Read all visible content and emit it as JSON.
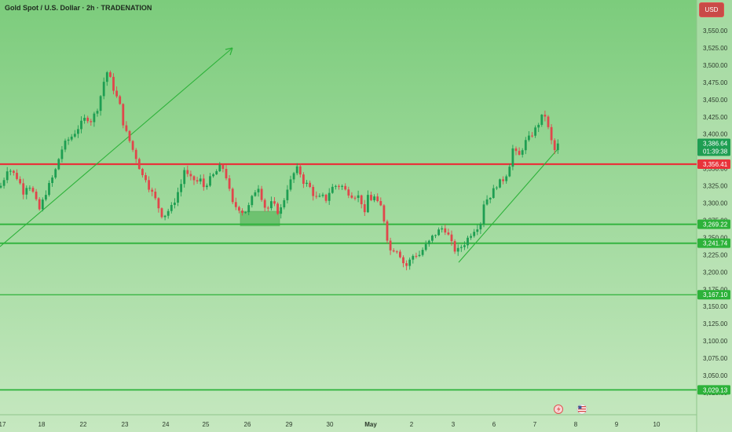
{
  "header": {
    "title": "Gold Spot / U.S. Dollar · 2h · TRADENATION",
    "currency": "USD"
  },
  "chart_data": {
    "type": "candlestick",
    "x_tick_labels": [
      "17",
      "18",
      "22",
      "23",
      "24",
      "25",
      "26",
      "29",
      "30",
      "May",
      "2",
      "3",
      "6",
      "7",
      "8",
      "9",
      "10"
    ],
    "y_tick_labels": [
      3550,
      3525,
      3500,
      3475,
      3450,
      3425,
      3400,
      3375,
      3350,
      3325,
      3300,
      3275,
      3250,
      3225,
      3200,
      3175,
      3150,
      3125,
      3100,
      3075,
      3050,
      3025
    ],
    "y_tick_text": [
      "3,550.00",
      "3,525.00",
      "3,500.00",
      "3,475.00",
      "3,450.00",
      "3,425.00",
      "3,400.00",
      "3,375.00",
      "3,350.00",
      "3,325.00",
      "3,300.00",
      "3,275.00",
      "3,250.00",
      "3,225.00",
      "3,200.00",
      "3,175.00",
      "3,150.00",
      "3,125.00",
      "3,100.00",
      "3,075.00",
      "3,050.00",
      "3,025.00"
    ],
    "ylim": [
      3015,
      3570
    ],
    "current_price": {
      "value": 3386.64,
      "label": "3,386.64",
      "countdown": "01:39:38"
    },
    "levels": [
      {
        "value": 3356.41,
        "label": "3,356.41",
        "color": "#e8333a"
      },
      {
        "value": 3269.22,
        "label": "3,269.22",
        "color": "#2db23a"
      },
      {
        "value": 3241.74,
        "label": "3,241.74",
        "color": "#2db23a"
      },
      {
        "value": 3167.1,
        "label": "3,167.10",
        "color": "#2db23a"
      },
      {
        "value": 3029.13,
        "label": "3,029.13",
        "color": "#2db23a"
      }
    ],
    "anchors": [
      [
        -1,
        3320
      ],
      [
        5,
        3335
      ],
      [
        10,
        3352
      ],
      [
        15,
        3345
      ],
      [
        20,
        3340
      ],
      [
        25,
        3330
      ],
      [
        30,
        3315
      ],
      [
        35,
        3328
      ],
      [
        40,
        3322
      ],
      [
        45,
        3305
      ],
      [
        50,
        3290
      ],
      [
        55,
        3305
      ],
      [
        60,
        3320
      ],
      [
        65,
        3332
      ],
      [
        70,
        3345
      ],
      [
        75,
        3365
      ],
      [
        80,
        3382
      ],
      [
        85,
        3390
      ],
      [
        90,
        3395
      ],
      [
        95,
        3402
      ],
      [
        100,
        3410
      ],
      [
        105,
        3418
      ],
      [
        110,
        3425
      ],
      [
        115,
        3418
      ],
      [
        120,
        3428
      ],
      [
        125,
        3440
      ],
      [
        128,
        3455
      ],
      [
        132,
        3475
      ],
      [
        135,
        3492
      ],
      [
        138,
        3487
      ],
      [
        142,
        3475
      ],
      [
        146,
        3460
      ],
      [
        150,
        3450
      ],
      [
        153,
        3440
      ],
      [
        156,
        3420
      ],
      [
        159,
        3405
      ],
      [
        162,
        3400
      ],
      [
        165,
        3390
      ],
      [
        168,
        3380
      ],
      [
        172,
        3370
      ],
      [
        175,
        3360
      ],
      [
        178,
        3350
      ],
      [
        180,
        3340
      ],
      [
        185,
        3338
      ],
      [
        190,
        3322
      ],
      [
        195,
        3312
      ],
      [
        200,
        3300
      ],
      [
        205,
        3283
      ],
      [
        210,
        3283
      ],
      [
        215,
        3290
      ],
      [
        220,
        3296
      ],
      [
        225,
        3312
      ],
      [
        230,
        3325
      ],
      [
        235,
        3350
      ],
      [
        238,
        3342
      ],
      [
        241,
        3334
      ],
      [
        245,
        3336
      ],
      [
        250,
        3330
      ],
      [
        255,
        3334
      ],
      [
        260,
        3322
      ],
      [
        265,
        3332
      ],
      [
        270,
        3338
      ],
      [
        275,
        3345
      ],
      [
        280,
        3352
      ],
      [
        285,
        3350
      ],
      [
        290,
        3330
      ],
      [
        295,
        3300
      ],
      [
        300,
        3295
      ],
      [
        305,
        3292
      ],
      [
        310,
        3286
      ],
      [
        315,
        3290
      ],
      [
        320,
        3305
      ],
      [
        325,
        3318
      ],
      [
        330,
        3325
      ],
      [
        335,
        3298
      ],
      [
        340,
        3290
      ],
      [
        345,
        3300
      ],
      [
        350,
        3295
      ],
      [
        355,
        3285
      ],
      [
        360,
        3298
      ],
      [
        365,
        3320
      ],
      [
        370,
        3332
      ],
      [
        375,
        3345
      ],
      [
        380,
        3352
      ],
      [
        385,
        3332
      ],
      [
        390,
        3328
      ],
      [
        395,
        3322
      ],
      [
        400,
        3310
      ],
      [
        405,
        3306
      ],
      [
        410,
        3310
      ],
      [
        415,
        3305
      ],
      [
        420,
        3318
      ],
      [
        425,
        3325
      ],
      [
        430,
        3325
      ],
      [
        435,
        3325
      ],
      [
        440,
        3318
      ],
      [
        445,
        3314
      ],
      [
        450,
        3310
      ],
      [
        455,
        3312
      ],
      [
        460,
        3302
      ],
      [
        462,
        3292
      ],
      [
        465,
        3280
      ],
      [
        468,
        3312
      ],
      [
        472,
        3305
      ],
      [
        476,
        3310
      ],
      [
        480,
        3300
      ],
      [
        485,
        3295
      ],
      [
        490,
        3270
      ],
      [
        494,
        3242
      ],
      [
        498,
        3228
      ],
      [
        503,
        3236
      ],
      [
        508,
        3228
      ],
      [
        512,
        3218
      ],
      [
        516,
        3206
      ],
      [
        520,
        3214
      ],
      [
        524,
        3220
      ],
      [
        528,
        3228
      ],
      [
        532,
        3222
      ],
      [
        536,
        3228
      ],
      [
        540,
        3236
      ],
      [
        544,
        3240
      ],
      [
        548,
        3246
      ],
      [
        552,
        3254
      ],
      [
        556,
        3256
      ],
      [
        560,
        3262
      ],
      [
        564,
        3264
      ],
      [
        568,
        3260
      ],
      [
        572,
        3250
      ],
      [
        576,
        3238
      ],
      [
        580,
        3230
      ],
      [
        584,
        3232
      ],
      [
        588,
        3238
      ],
      [
        592,
        3242
      ],
      [
        596,
        3250
      ],
      [
        600,
        3256
      ],
      [
        604,
        3262
      ],
      [
        608,
        3266
      ],
      [
        612,
        3272
      ],
      [
        616,
        3300
      ],
      [
        620,
        3306
      ],
      [
        624,
        3310
      ],
      [
        628,
        3318
      ],
      [
        632,
        3326
      ],
      [
        636,
        3330
      ],
      [
        640,
        3333
      ],
      [
        644,
        3340
      ],
      [
        648,
        3350
      ],
      [
        652,
        3380
      ],
      [
        656,
        3374
      ],
      [
        660,
        3366
      ],
      [
        664,
        3376
      ],
      [
        668,
        3388
      ],
      [
        672,
        3392
      ],
      [
        676,
        3398
      ],
      [
        680,
        3404
      ],
      [
        684,
        3412
      ],
      [
        688,
        3420
      ],
      [
        692,
        3430
      ],
      [
        695,
        3425
      ],
      [
        698,
        3408
      ],
      [
        701,
        3395
      ],
      [
        704,
        3380
      ],
      [
        707,
        3375
      ],
      [
        710,
        3384
      ],
      [
        712,
        3386.64
      ]
    ]
  }
}
